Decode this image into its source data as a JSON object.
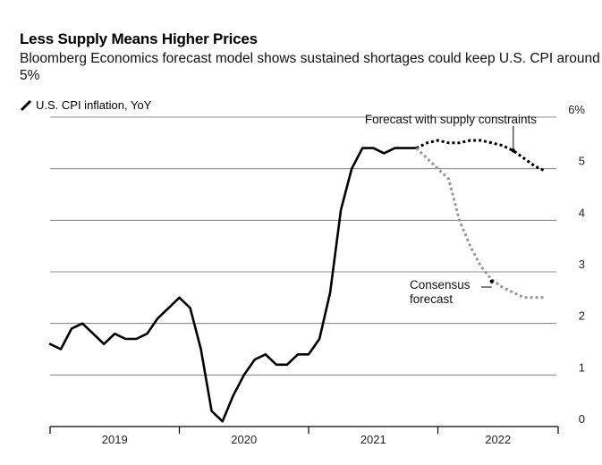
{
  "chart_data": {
    "type": "line",
    "title": "Less Supply Means Higher Prices",
    "subtitle": "Bloomberg Economics forecast model shows sustained shortages could keep U.S. CPI around 5%",
    "ylabel": "U.S. CPI inflation, YoY",
    "ylim": [
      0,
      6
    ],
    "y_ticks": [
      "0",
      "1",
      "2",
      "3",
      "4",
      "5",
      "6%"
    ],
    "x_ticks": [
      "2019",
      "2020",
      "2021",
      "2022"
    ],
    "grid": true,
    "series": [
      {
        "name": "U.S. CPI inflation, YoY",
        "style": "solid",
        "color": "#000000",
        "x": [
          0,
          1,
          2,
          3,
          4,
          5,
          6,
          7,
          8,
          9,
          10,
          11,
          12,
          13,
          14,
          15,
          16,
          17,
          18,
          19,
          20,
          21,
          22,
          23,
          24,
          25,
          26,
          27,
          28,
          29,
          30,
          31,
          32,
          33,
          34
        ],
        "values": [
          1.6,
          1.5,
          1.9,
          2.0,
          1.8,
          1.6,
          1.8,
          1.7,
          1.7,
          1.8,
          2.1,
          2.3,
          2.5,
          2.3,
          1.5,
          0.3,
          0.1,
          0.6,
          1.0,
          1.3,
          1.4,
          1.2,
          1.2,
          1.4,
          1.4,
          1.7,
          2.6,
          4.2,
          5.0,
          5.4,
          5.4,
          5.3,
          5.4,
          5.4,
          5.4
        ]
      },
      {
        "name": "Forecast with supply constraints",
        "style": "dotted",
        "color": "#000000",
        "x": [
          34,
          35,
          36,
          37,
          38,
          39,
          40,
          41,
          42,
          43,
          44,
          45,
          46
        ],
        "values": [
          5.4,
          5.5,
          5.55,
          5.5,
          5.5,
          5.55,
          5.55,
          5.5,
          5.45,
          5.35,
          5.2,
          5.05,
          4.95
        ]
      },
      {
        "name": "Consensus forecast",
        "style": "dotted",
        "color": "#999999",
        "x": [
          34,
          35,
          36,
          37,
          38,
          39,
          40,
          41,
          42,
          43,
          44,
          45,
          46
        ],
        "values": [
          5.4,
          5.2,
          5.0,
          4.8,
          4.0,
          3.5,
          3.1,
          2.85,
          2.7,
          2.6,
          2.5,
          2.5,
          2.5
        ]
      }
    ],
    "annotations": [
      {
        "text": "Forecast with supply constraints",
        "series": 1,
        "at_x": 43
      },
      {
        "text": "Consensus forecast",
        "series": 2,
        "at_x": 41
      }
    ]
  }
}
